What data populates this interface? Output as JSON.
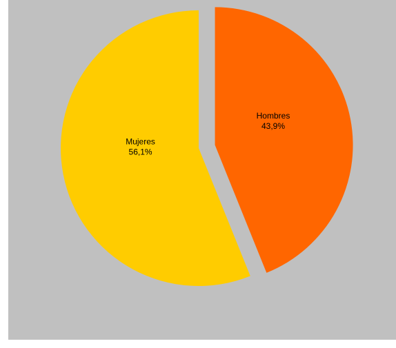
{
  "chart_data": {
    "type": "pie",
    "slices": [
      {
        "name": "Hombres",
        "value": 43.9,
        "label": "43,9%",
        "color": "#ff6600",
        "exploded": true
      },
      {
        "name": "Mujeres",
        "value": 56.1,
        "label": "56,1%",
        "color": "#ffcc00",
        "exploded": false
      }
    ],
    "background": "#c0c0c0",
    "legend": "none"
  }
}
